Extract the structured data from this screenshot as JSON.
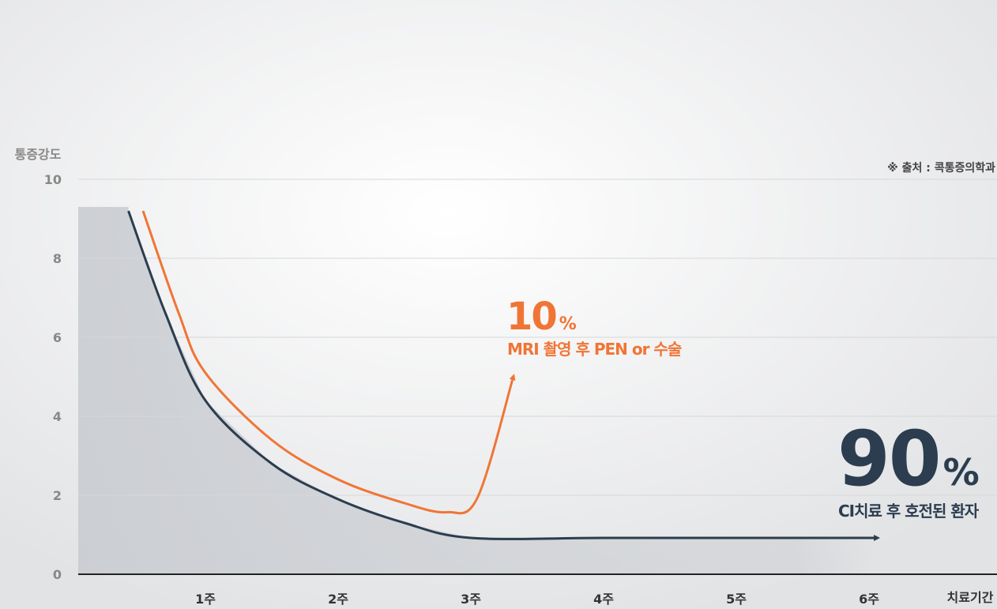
{
  "chart_data": {
    "type": "line",
    "y_label": "통증강도",
    "x_label": "치료기간",
    "source": "※ 출처 : 콕통증의학과",
    "xlim": [
      0,
      7
    ],
    "ylim": [
      0,
      10
    ],
    "xticks": [
      {
        "value": 1,
        "label": "1주"
      },
      {
        "value": 2,
        "label": "2주"
      },
      {
        "value": 3,
        "label": "3주"
      },
      {
        "value": 4,
        "label": "4주"
      },
      {
        "value": 5,
        "label": "5주"
      },
      {
        "value": 6,
        "label": "6주"
      }
    ],
    "yticks": [
      0,
      2,
      4,
      6,
      8,
      10
    ],
    "grid": true,
    "series": [
      {
        "name": "MRI 촬영 후 PEN or 수술",
        "color": "#f07535",
        "share": 10,
        "share_unit": "%",
        "x": [
          0.53,
          0.8,
          1,
          1.5,
          2,
          2.5,
          2.82,
          3.05,
          3.32
        ],
        "values": [
          9.2,
          6.6,
          5.1,
          3.4,
          2.4,
          1.8,
          1.57,
          1.94,
          5.0
        ]
      },
      {
        "name": "CI치료 후 호전된 환자",
        "color": "#2b3d4f",
        "share": 90,
        "share_unit": "%",
        "x": [
          0.42,
          0.7,
          1,
          1.5,
          2,
          2.5,
          3,
          4,
          5,
          6.06
        ],
        "values": [
          9.2,
          6.6,
          4.4,
          2.8,
          1.9,
          1.3,
          0.92,
          0.92,
          0.92,
          0.92
        ]
      }
    ]
  }
}
